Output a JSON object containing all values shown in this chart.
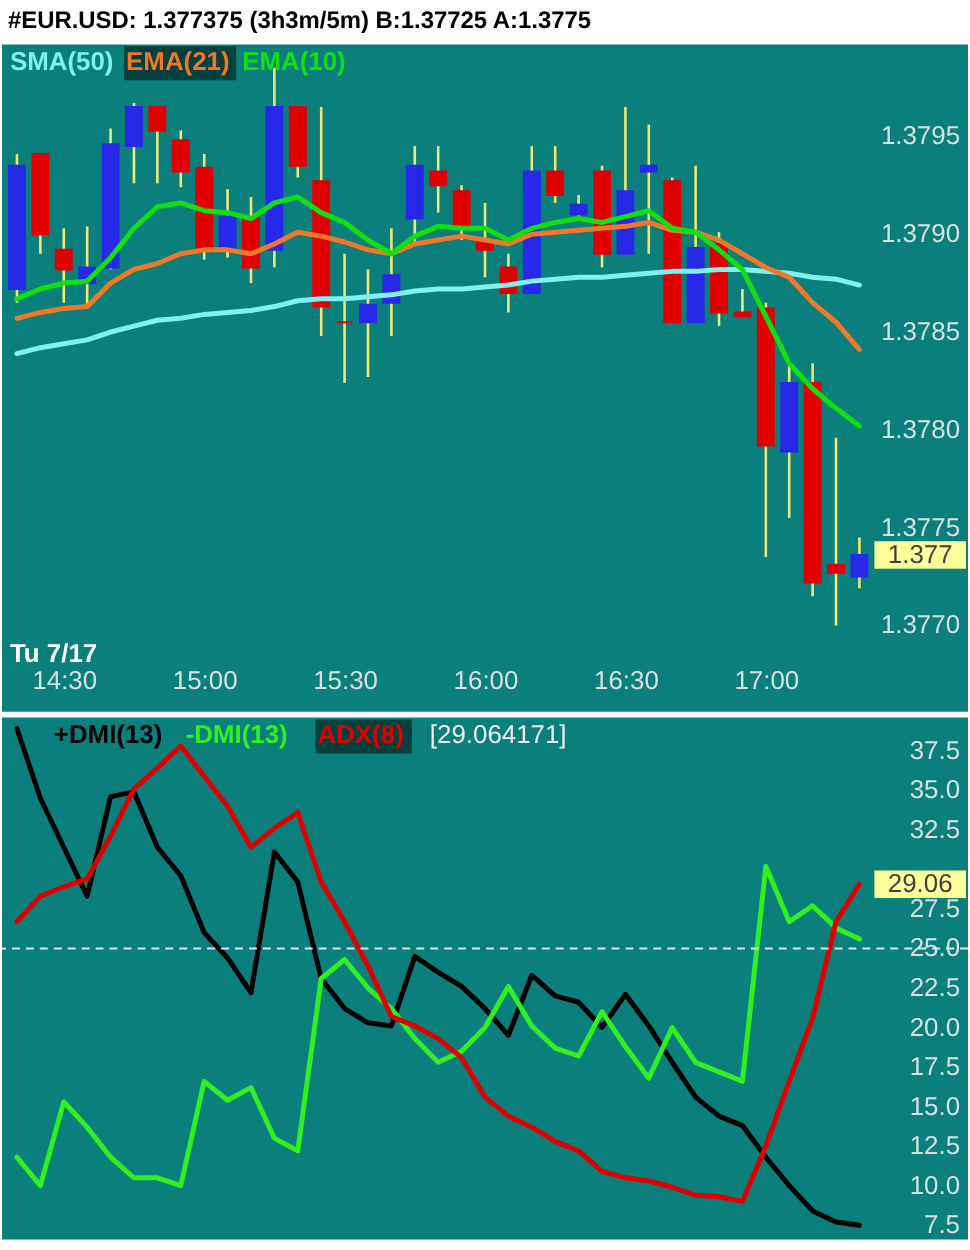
{
  "chart_data": [
    {
      "type": "candlestick",
      "title": "#EUR.USD: 1.377375 (3h3m/5m) B:1.37725 A:1.3775",
      "x": [
        14.3333,
        14.4167,
        14.5,
        14.5833,
        14.6667,
        14.75,
        14.8333,
        14.9167,
        15,
        15.0833,
        15.1667,
        15.25,
        15.3333,
        15.4167,
        15.5,
        15.5833,
        15.6667,
        15.75,
        15.8333,
        15.9167,
        16,
        16.0833,
        16.1667,
        16.25,
        16.3333,
        16.4167,
        16.5,
        16.5833,
        16.6667,
        16.75,
        16.8333,
        16.9167,
        17,
        17.0833,
        17.1667,
        17.25,
        17.3333
      ],
      "ohlc": [
        [
          1.37872,
          1.37941,
          1.37865,
          1.37935
        ],
        [
          1.37941,
          1.37941,
          1.3789,
          1.379
        ],
        [
          1.37892,
          1.37903,
          1.37865,
          1.37882
        ],
        [
          1.37875,
          1.37904,
          1.37863,
          1.37883
        ],
        [
          1.37883,
          1.37954,
          1.37882,
          1.37946
        ],
        [
          1.37945,
          1.37967,
          1.37926,
          1.37965
        ],
        [
          1.37965,
          1.37965,
          1.37926,
          1.37953
        ],
        [
          1.37948,
          1.37953,
          1.37924,
          1.37932
        ],
        [
          1.37934,
          1.37941,
          1.37887,
          1.37892
        ],
        [
          1.37893,
          1.37923,
          1.37888,
          1.37909
        ],
        [
          1.37908,
          1.37919,
          1.37875,
          1.37883
        ],
        [
          1.37892,
          1.37985,
          1.37883,
          1.37965
        ],
        [
          1.37965,
          1.37965,
          1.37929,
          1.37935
        ],
        [
          1.37927,
          1.37965,
          1.37848,
          1.37863
        ],
        [
          1.37855,
          1.3789,
          1.37824,
          1.37855
        ],
        [
          1.37855,
          1.37882,
          1.37827,
          1.37864
        ],
        [
          1.37865,
          1.37903,
          1.37848,
          1.37879
        ],
        [
          1.37908,
          1.37945,
          1.37895,
          1.37935
        ],
        [
          1.37932,
          1.37945,
          1.37911,
          1.37925
        ],
        [
          1.37922,
          1.37925,
          1.37897,
          1.37904
        ],
        [
          1.37897,
          1.37916,
          1.37878,
          1.37892
        ],
        [
          1.37883,
          1.3789,
          1.3786,
          1.3787
        ],
        [
          1.3787,
          1.37945,
          1.3787,
          1.37932
        ],
        [
          1.37932,
          1.37945,
          1.37916,
          1.3792
        ],
        [
          1.3791,
          1.3792,
          1.37909,
          1.37915
        ],
        [
          1.37932,
          1.37935,
          1.37883,
          1.3789
        ],
        [
          1.3789,
          1.37965,
          1.3789,
          1.37922
        ],
        [
          1.37932,
          1.37956,
          1.3789,
          1.37935
        ],
        [
          1.37927,
          1.37929,
          1.37855,
          1.37855
        ],
        [
          1.37855,
          1.37935,
          1.37855,
          1.37893
        ],
        [
          1.37895,
          1.37901,
          1.37853,
          1.3786
        ],
        [
          1.3786,
          1.37872,
          1.37858,
          1.37858
        ],
        [
          1.37862,
          1.37865,
          1.37735,
          1.37792
        ],
        [
          1.37789,
          1.37834,
          1.37755,
          1.37824
        ],
        [
          1.37824,
          1.37834,
          1.37715,
          1.37722
        ],
        [
          1.37731,
          1.37796,
          1.377,
          1.37727
        ],
        [
          1.37725,
          1.37745,
          1.37719,
          1.37736
        ]
      ],
      "colors": [
        "#2828e8",
        "#e00000",
        "#e00000",
        "#2828e8",
        "#2828e8",
        "#2828e8",
        "#e00000",
        "#e00000",
        "#e00000",
        "#2828e8",
        "#e00000",
        "#2828e8",
        "#e00000",
        "#e00000",
        "#e00000",
        "#2828e8",
        "#2828e8",
        "#2828e8",
        "#e00000",
        "#e00000",
        "#e00000",
        "#e00000",
        "#2828e8",
        "#e00000",
        "#2828e8",
        "#e00000",
        "#2828e8",
        "#2828e8",
        "#e00000",
        "#2828e8",
        "#e00000",
        "#e00000",
        "#e00000",
        "#2828e8",
        "#e00000",
        "#e00000",
        "#2828e8"
      ],
      "series": [
        {
          "name": "SMA(50)",
          "type": "line",
          "color": "#80f0f0",
          "values": [
            1.37839,
            1.37842,
            1.37844,
            1.37846,
            1.3785,
            1.37853,
            1.37856,
            1.37857,
            1.37859,
            1.3786,
            1.37861,
            1.37863,
            1.37866,
            1.37867,
            1.37867,
            1.37868,
            1.37869,
            1.37871,
            1.37872,
            1.37872,
            1.37873,
            1.37874,
            1.37876,
            1.37877,
            1.37878,
            1.37878,
            1.37879,
            1.3788,
            1.37881,
            1.37881,
            1.37882,
            1.37882,
            1.37881,
            1.3788,
            1.37878,
            1.37877,
            1.37874
          ]
        },
        {
          "name": "EMA(21)",
          "type": "line",
          "color": "#f07828",
          "values": [
            1.37857,
            1.3786,
            1.37862,
            1.37863,
            1.37875,
            1.37882,
            1.37885,
            1.3789,
            1.37892,
            1.37892,
            1.3789,
            1.37895,
            1.37901,
            1.37899,
            1.37896,
            1.37892,
            1.3789,
            1.37895,
            1.37897,
            1.37899,
            1.37897,
            1.37895,
            1.379,
            1.37901,
            1.37902,
            1.37903,
            1.37904,
            1.37906,
            1.37902,
            1.37901,
            1.37897,
            1.3789,
            1.37883,
            1.37878,
            1.37865,
            1.37855,
            1.37841
          ]
        },
        {
          "name": "EMA(10)",
          "type": "line",
          "color": "#10e010",
          "values": [
            1.37867,
            1.37872,
            1.37875,
            1.37876,
            1.37888,
            1.37903,
            1.37914,
            1.37916,
            1.37912,
            1.37911,
            1.37908,
            1.37916,
            1.37919,
            1.37911,
            1.37906,
            1.37897,
            1.3789,
            1.37899,
            1.37904,
            1.37903,
            1.37903,
            1.37897,
            1.37903,
            1.37906,
            1.37908,
            1.37906,
            1.37909,
            1.37912,
            1.37903,
            1.37901,
            1.37892,
            1.37882,
            1.37858,
            1.37834,
            1.37821,
            1.37811,
            1.37802
          ]
        }
      ],
      "xlim": [
        14.28,
        17.72
      ],
      "xticks": [
        {
          "value": 14.5,
          "label": "14:30"
        },
        {
          "value": 15,
          "label": "15:00"
        },
        {
          "value": 15.5,
          "label": "15:30"
        },
        {
          "value": 16,
          "label": "16:00"
        },
        {
          "value": 16.5,
          "label": "16:30"
        },
        {
          "value": 17,
          "label": "17:00"
        }
      ],
      "ylim": [
        1.37656,
        1.37997
      ],
      "yticks": [
        {
          "value": 1.377,
          "label": "1.3770"
        },
        1.3775,
        {
          "value": 1.378,
          "label": "1.3780"
        },
        1.3785,
        {
          "value": 1.379,
          "label": "1.3790"
        },
        1.3795
      ],
      "legend": "top left",
      "annotations": [
        "Tu 7/17",
        "1.377"
      ]
    },
    {
      "type": "line",
      "x": [
        14.3333,
        14.4167,
        14.5,
        14.5833,
        14.6667,
        14.75,
        14.8333,
        14.9167,
        15,
        15.0833,
        15.1667,
        15.25,
        15.3333,
        15.4167,
        15.5,
        15.5833,
        15.6667,
        15.75,
        15.8333,
        15.9167,
        16,
        16.0833,
        16.1667,
        16.25,
        16.3333,
        16.4167,
        16.5,
        16.5833,
        16.6667,
        16.75,
        16.8333,
        16.9167,
        17,
        17.0833,
        17.1667,
        17.25,
        17.3333
      ],
      "series": [
        {
          "name": "+DMI(13)",
          "type": "line",
          "color": "#000000",
          "values": [
            38.9,
            34.5,
            31.4,
            28.3,
            34.6,
            34.9,
            31.4,
            29.6,
            26.0,
            24.4,
            22.2,
            31.1,
            29.2,
            23.1,
            21.2,
            20.3,
            20.1,
            24.5,
            23.5,
            22.6,
            21.2,
            19.5,
            23.3,
            22.0,
            21.6,
            20.0,
            22.1,
            20.1,
            17.8,
            15.6,
            14.4,
            13.8,
            11.8,
            10.0,
            8.4,
            7.7,
            7.5
          ]
        },
        {
          "name": "-DMI(13)",
          "type": "line",
          "color": "#30f020",
          "values": [
            11.8,
            10.0,
            15.3,
            13.7,
            11.8,
            10.5,
            10.5,
            10.0,
            16.6,
            15.4,
            16.2,
            13.0,
            12.2,
            23.1,
            24.3,
            22.5,
            21.2,
            19.3,
            17.8,
            18.5,
            20.0,
            22.6,
            20.1,
            18.7,
            18.2,
            21.0,
            18.8,
            16.8,
            20.0,
            17.8,
            17.2,
            16.6,
            30.2,
            26.7,
            27.7,
            26.3,
            25.6
          ]
        },
        {
          "name": "ADX(8)",
          "type": "line",
          "color": "#e00000",
          "values": [
            26.7,
            28.3,
            28.9,
            29.4,
            32.1,
            35.1,
            36.4,
            37.8,
            35.9,
            34.0,
            31.4,
            32.6,
            33.6,
            29.2,
            26.7,
            23.9,
            20.7,
            20.1,
            19.3,
            18.1,
            15.6,
            14.4,
            13.7,
            12.8,
            12.2,
            10.9,
            10.5,
            10.3,
            9.9,
            9.4,
            9.3,
            9.0,
            12.5,
            16.6,
            20.6,
            26.7,
            29.06
          ]
        }
      ],
      "xlim": [
        14.28,
        17.72
      ],
      "ylim": [
        6.6,
        39.6
      ],
      "yticks": [
        7.5,
        {
          "value": 10,
          "label": "10.0"
        },
        12.5,
        {
          "value": 15,
          "label": "15.0"
        },
        17.5,
        {
          "value": 20,
          "label": "20.0"
        },
        22.5,
        {
          "value": 25,
          "label": "25.0"
        },
        27.5,
        32.5,
        {
          "value": 35,
          "label": "35.0"
        },
        37.5
      ],
      "tick_labels": "y",
      "legend": "top left",
      "ref_lines": [
        {
          "axis": "y",
          "value": 25,
          "color": "#d8e8e8",
          "line_style": "dashed"
        }
      ],
      "annotations": [
        "[29.064171]",
        "29.06"
      ]
    }
  ]
}
